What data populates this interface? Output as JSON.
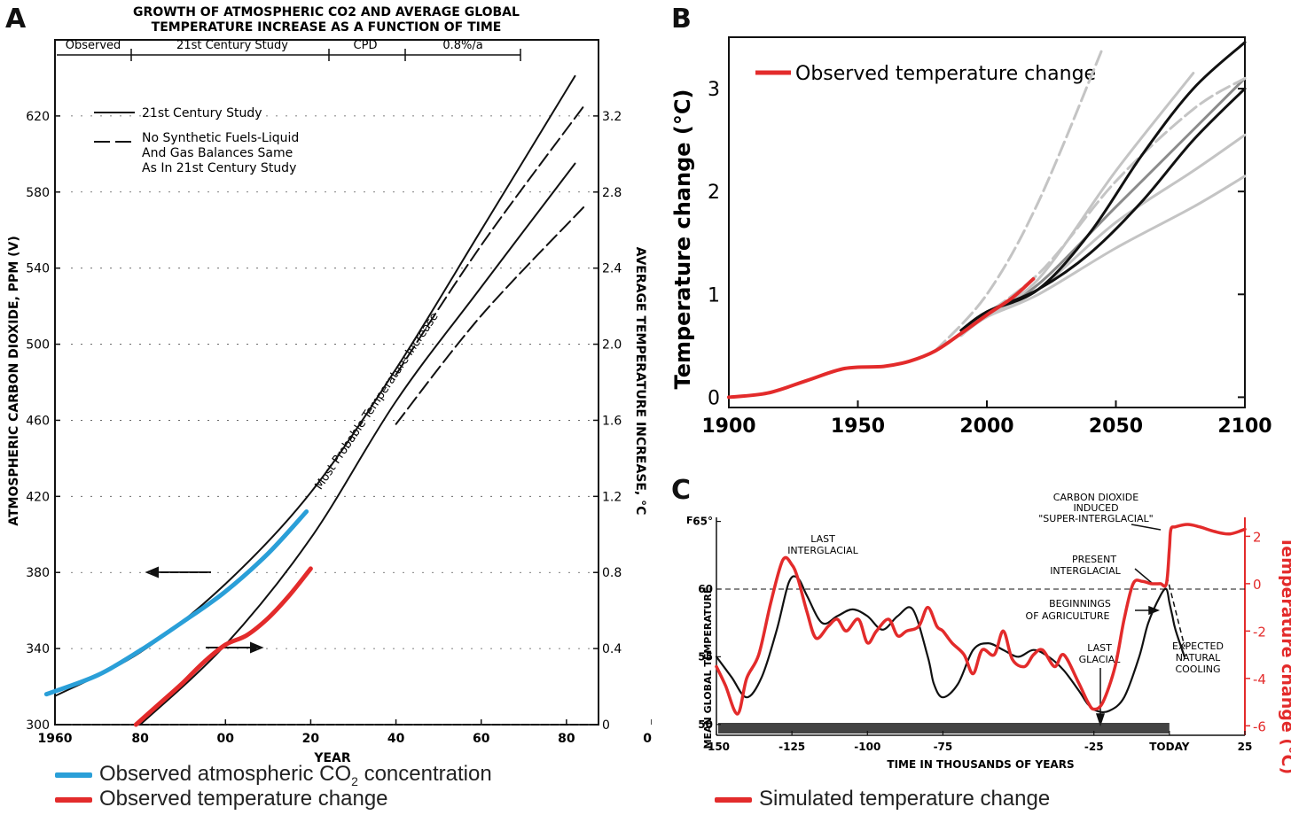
{
  "panel_labels": {
    "a": "A",
    "b": "B",
    "c": "C"
  },
  "colors": {
    "observed_co2": "#2a9fd8",
    "observed_temp": "#e32b2b",
    "simulated_temp": "#e32b2b",
    "ink": "#111111"
  },
  "panel_a": {
    "title_line1": "GROWTH OF ATMOSPHERIC CO2 AND AVERAGE GLOBAL",
    "title_line2": "TEMPERATURE INCREASE AS A FUNCTION OF TIME",
    "periods": [
      "Observed",
      "21st Century Study",
      "CPD",
      "0.8%/a"
    ],
    "legend_solid": "21st Century Study",
    "legend_dashed_lines": [
      "No Synthetic Fuels-Liquid",
      "And Gas Balances Same",
      "As In 21st Century Study"
    ],
    "curve_annotation": "Most Probable Temperature Increase",
    "ylabel_left": "ATMOSPHERIC CARBON DIOXIDE, PPM (V)",
    "ylabel_right": "AVERAGE TEMPERATURE INCREASE, °C",
    "xlabel": "YEAR",
    "legend_co2": "Observed atmospheric CO",
    "legend_co2_sub": "2",
    "legend_co2_tail": " concentration",
    "legend_temp": "Observed temperature change"
  },
  "panel_b": {
    "ylabel": "Temperature change (°C)",
    "legend": "Observed temperature change"
  },
  "panel_c": {
    "ylabel_left": "MEAN GLOBAL TEMPERATURE",
    "ylabel_right": "Temperature change (°C)",
    "left_unit": "F",
    "xlabel": "TIME IN THOUSANDS OF YEARS",
    "annotations": {
      "last_interglacial": [
        "LAST",
        "INTERGLACIAL"
      ],
      "co2_super": [
        "CARBON DIOXIDE",
        "INDUCED",
        "\"SUPER-INTERGLACIAL\""
      ],
      "present_interglacial": [
        "PRESENT",
        "INTERGLACIAL"
      ],
      "agriculture": [
        "BEGINNINGS",
        "OF AGRICULTURE"
      ],
      "last_glacial": [
        "LAST",
        "GLACIAL"
      ],
      "natural_cooling": [
        "EXPECTED",
        "NATURAL",
        "COOLING"
      ]
    },
    "legend": "Simulated temperature change"
  },
  "chart_data": [
    {
      "type": "line",
      "panel": "A",
      "title": "GROWTH OF ATMOSPHERIC CO2 AND AVERAGE GLOBAL TEMPERATURE INCREASE AS A FUNCTION OF TIME",
      "xlabel": "YEAR",
      "ylabel": "ATMOSPHERIC CARBON DIOXIDE, PPM (V)",
      "ylabel_right": "AVERAGE TEMPERATURE INCREASE, °C",
      "xlim": [
        1960,
        2100
      ],
      "ylim": [
        300,
        660
      ],
      "ylim_right": [
        0,
        3.6
      ],
      "x_ticks": [
        "1960",
        "80",
        "00",
        "20",
        "40",
        "60",
        "80",
        "00"
      ],
      "x_tick_values": [
        1960,
        1980,
        2000,
        2020,
        2040,
        2060,
        2080,
        2100
      ],
      "y_ticks": [
        300,
        340,
        380,
        420,
        460,
        500,
        540,
        580,
        620
      ],
      "y_ticks_right": [
        "0",
        "0.4",
        "0.8",
        "1.2",
        "1.6",
        "2.0",
        "2.4",
        "2.8",
        "3.2"
      ],
      "series": [
        {
          "name": "21st Century Study",
          "axis": "left",
          "style": "solid",
          "x": [
            1960,
            1980,
            2000,
            2020,
            2040,
            2060,
            2082
          ],
          "y": [
            315,
            338,
            374,
            422,
            487,
            560,
            641
          ]
        },
        {
          "name": "No Synthetic Fuels-Liquid And Gas Balances Same As In 21st Century Study",
          "axis": "left",
          "style": "dashed",
          "x": [
            2040,
            2060,
            2084
          ],
          "y": [
            484,
            552,
            625
          ]
        },
        {
          "name": "Most Probable Temperature Increase",
          "axis": "right",
          "style": "solid",
          "x": [
            1980,
            2000,
            2020,
            2040,
            2060,
            2082
          ],
          "y": [
            0.0,
            0.42,
            0.98,
            1.7,
            2.3,
            2.95
          ]
        },
        {
          "name": "",
          "axis": "right",
          "style": "dashed",
          "x": [
            2040,
            2060,
            2084
          ],
          "y": [
            1.58,
            2.15,
            2.72
          ]
        },
        {
          "name": "Observed atmospheric CO2 concentration",
          "axis": "left",
          "color": "#2a9fd8",
          "x": [
            1958,
            1970,
            1980,
            1990,
            2000,
            2010,
            2019
          ],
          "y": [
            316,
            326,
            339,
            354,
            370,
            390,
            412
          ]
        },
        {
          "name": "Observed temperature change",
          "axis": "right",
          "color": "#e32b2b",
          "x": [
            1979,
            1985,
            1990,
            1995,
            2000,
            2005,
            2010,
            2015,
            2020
          ],
          "y": [
            0.0,
            0.12,
            0.22,
            0.33,
            0.42,
            0.47,
            0.56,
            0.68,
            0.82
          ]
        }
      ]
    },
    {
      "type": "line",
      "panel": "B",
      "ylabel": "Temperature change (°C)",
      "xlim": [
        1900,
        2100
      ],
      "ylim": [
        -0.1,
        3.5
      ],
      "x_ticks": [
        1900,
        1950,
        2000,
        2050,
        2100
      ],
      "y_ticks": [
        0,
        1,
        2,
        3
      ],
      "series": [
        {
          "name": "Observed temperature change",
          "color": "#e32b2b",
          "x": [
            1900,
            1915,
            1930,
            1945,
            1960,
            1970,
            1980,
            1990,
            2000,
            2010,
            2018
          ],
          "y": [
            0.0,
            0.04,
            0.16,
            0.28,
            0.3,
            0.35,
            0.45,
            0.62,
            0.8,
            0.97,
            1.15
          ]
        },
        {
          "color": "#111111",
          "x": [
            1990,
            2000,
            2020,
            2040,
            2060,
            2080,
            2100
          ],
          "y": [
            0.65,
            0.83,
            1.05,
            1.6,
            2.35,
            3.0,
            3.45
          ]
        },
        {
          "color": "#111111",
          "x": [
            1990,
            2000,
            2020,
            2040,
            2060,
            2080,
            2100
          ],
          "y": [
            0.65,
            0.83,
            1.05,
            1.4,
            1.9,
            2.5,
            3.0
          ]
        },
        {
          "color": "#8c8c8c",
          "x": [
            1990,
            2000,
            2020,
            2050,
            2080,
            2100
          ],
          "y": [
            0.6,
            0.8,
            1.1,
            1.85,
            2.6,
            3.1
          ]
        },
        {
          "color": "#c4c4c4",
          "x": [
            1990,
            2000,
            2020,
            2050,
            2080,
            2100
          ],
          "y": [
            0.6,
            0.8,
            1.05,
            1.7,
            2.2,
            2.55
          ]
        },
        {
          "color": "#c4c4c4",
          "x": [
            1990,
            2000,
            2020,
            2050,
            2080,
            2100
          ],
          "y": [
            0.6,
            0.78,
            1.0,
            1.45,
            1.85,
            2.15
          ]
        },
        {
          "color": "#c4c4c4",
          "x": [
            1990,
            2000,
            2020,
            2050,
            2080
          ],
          "y": [
            0.6,
            0.82,
            1.15,
            2.2,
            3.15
          ]
        },
        {
          "color": "#c4c4c4",
          "style": "dashed",
          "x": [
            1980,
            2000,
            2020,
            2045
          ],
          "y": [
            0.45,
            1.0,
            1.9,
            3.4
          ]
        },
        {
          "color": "#c4c4c4",
          "style": "dashed",
          "x": [
            1990,
            2020,
            2050,
            2080,
            2100
          ],
          "y": [
            0.65,
            1.2,
            2.1,
            2.8,
            3.1
          ]
        }
      ]
    },
    {
      "type": "line",
      "panel": "C",
      "xlabel": "TIME IN THOUSANDS OF YEARS",
      "ylabel": "MEAN GLOBAL TEMPERATURE",
      "ylabel_right": "Temperature change (°C)",
      "xlim": [
        -150,
        25
      ],
      "x_ticks": [
        "-150",
        "-125",
        "-100",
        "-75",
        "-25",
        "TODAY",
        "25"
      ],
      "x_tick_values": [
        -150,
        -125,
        -100,
        -75,
        -25,
        0,
        25
      ],
      "y_ticks_left": [
        "65°",
        "60",
        "55",
        "50"
      ],
      "y_tick_values_left": [
        65,
        60,
        55,
        50
      ],
      "ylim_left": [
        49.2,
        65.3
      ],
      "y_ticks_right": [
        2,
        0,
        -2,
        -4,
        -6
      ],
      "ylim_right": [
        -6.4,
        2.8
      ],
      "series": [
        {
          "name": "Mean global temperature",
          "axis": "left",
          "color": "#111111",
          "x": [
            -150,
            -145,
            -140,
            -135,
            -130,
            -126,
            -123,
            -120,
            -115,
            -110,
            -105,
            -100,
            -95,
            -90,
            -85,
            -80,
            -78,
            -75,
            -70,
            -65,
            -60,
            -55,
            -50,
            -45,
            -40,
            -35,
            -30,
            -27,
            -24,
            -20,
            -15,
            -10,
            -7,
            -3,
            -1,
            0,
            1,
            2,
            5
          ],
          "y": [
            55,
            53.5,
            52,
            53.5,
            57,
            60.5,
            60.8,
            59.5,
            57.5,
            58,
            58.5,
            58,
            57,
            58,
            58.5,
            55,
            53,
            52,
            53,
            55.5,
            56,
            55.5,
            55,
            55.5,
            55,
            54,
            52.5,
            51.5,
            51,
            51,
            52,
            55,
            57.5,
            59.5,
            60,
            59,
            58,
            57,
            55
          ]
        },
        {
          "name": "Simulated temperature change",
          "axis": "right",
          "color": "#e32b2b",
          "x": [
            -150,
            -147,
            -143,
            -140,
            -136,
            -132,
            -128,
            -125,
            -123,
            -120,
            -117,
            -113,
            -110,
            -107,
            -103,
            -100,
            -97,
            -93,
            -90,
            -87,
            -83,
            -80,
            -77,
            -75,
            -72,
            -68,
            -65,
            -62,
            -58,
            -55,
            -52,
            -48,
            -45,
            -42,
            -38,
            -35,
            -30,
            -27,
            -25,
            -22,
            -18,
            -15,
            -12,
            -9,
            -6,
            -3,
            -1,
            0,
            0.5,
            2,
            6,
            10,
            15,
            20,
            25
          ],
          "y": [
            -3.5,
            -4.3,
            -5.5,
            -4.0,
            -3.0,
            -0.8,
            1.0,
            0.8,
            0.2,
            -1.2,
            -2.3,
            -1.8,
            -1.5,
            -2.0,
            -1.5,
            -2.5,
            -2.0,
            -1.5,
            -2.2,
            -2.0,
            -1.8,
            -1.0,
            -1.8,
            -2.0,
            -2.5,
            -3.0,
            -3.8,
            -2.8,
            -3.0,
            -2.0,
            -3.2,
            -3.5,
            -3.0,
            -2.8,
            -3.5,
            -3.0,
            -4.2,
            -5.0,
            -5.3,
            -5.0,
            -3.5,
            -1.5,
            0.0,
            0.1,
            0.0,
            0.0,
            0.0,
            1.5,
            2.3,
            2.4,
            2.5,
            2.4,
            2.2,
            2.1,
            2.3
          ]
        }
      ]
    }
  ]
}
